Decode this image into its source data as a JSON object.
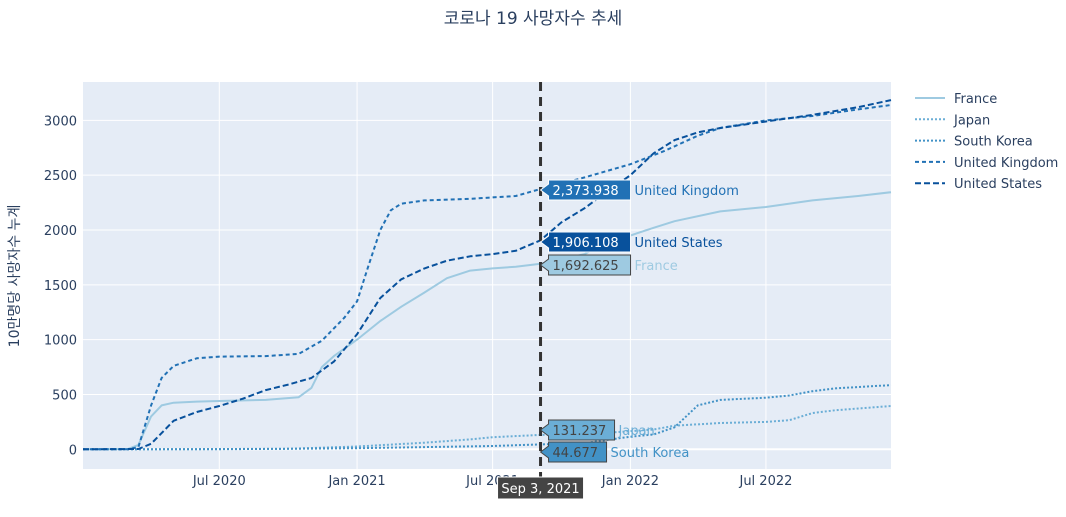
{
  "chart_data": {
    "type": "line",
    "title": "코로나 19 사망자수 추세",
    "xlabel": "",
    "ylabel": "10만명당 사망자수 누계",
    "x_range": [
      "2020-01-01",
      "2022-12-15"
    ],
    "ylim": [
      -180,
      3350
    ],
    "y_ticks": [
      0,
      500,
      1000,
      1500,
      2000,
      2500,
      3000
    ],
    "y_tick_labels": [
      "0",
      "500",
      "1000",
      "1500",
      "2000",
      "2500",
      "3000"
    ],
    "x_ticks": [
      "2020-07-01",
      "2021-01-01",
      "2021-07-01",
      "2022-01-01",
      "2022-07-01"
    ],
    "x_tick_labels": [
      "Jul 2020",
      "Jan 2021",
      "Jul 2021",
      "Jan 2022",
      "Jul 2022"
    ],
    "grid": true,
    "legend_position": "right",
    "plot_bg": "#e5ecf6",
    "series": [
      {
        "name": "France",
        "color": "#9ecae1",
        "dash": "solid",
        "points": [
          [
            "2020-01-01",
            0
          ],
          [
            "2020-03-01",
            2
          ],
          [
            "2020-03-15",
            40
          ],
          [
            "2020-04-01",
            300
          ],
          [
            "2020-04-15",
            400
          ],
          [
            "2020-05-01",
            425
          ],
          [
            "2020-06-01",
            435
          ],
          [
            "2020-07-01",
            440
          ],
          [
            "2020-09-01",
            450
          ],
          [
            "2020-10-15",
            475
          ],
          [
            "2020-11-01",
            560
          ],
          [
            "2020-11-15",
            750
          ],
          [
            "2020-12-01",
            850
          ],
          [
            "2021-01-01",
            1000
          ],
          [
            "2021-02-01",
            1170
          ],
          [
            "2021-03-01",
            1300
          ],
          [
            "2021-04-01",
            1430
          ],
          [
            "2021-05-01",
            1560
          ],
          [
            "2021-06-01",
            1630
          ],
          [
            "2021-07-01",
            1650
          ],
          [
            "2021-08-01",
            1665
          ],
          [
            "2021-09-03",
            1692.625
          ],
          [
            "2021-11-01",
            1780
          ],
          [
            "2021-12-01",
            1900
          ],
          [
            "2022-01-01",
            1950
          ],
          [
            "2022-02-01",
            2020
          ],
          [
            "2022-03-01",
            2080
          ],
          [
            "2022-05-01",
            2170
          ],
          [
            "2022-07-01",
            2210
          ],
          [
            "2022-09-01",
            2270
          ],
          [
            "2022-11-01",
            2310
          ],
          [
            "2022-12-15",
            2345
          ]
        ]
      },
      {
        "name": "Japan",
        "color": "#6baed6",
        "dash": "dot",
        "points": [
          [
            "2020-01-01",
            0
          ],
          [
            "2020-03-01",
            0
          ],
          [
            "2020-07-01",
            2
          ],
          [
            "2020-10-01",
            4
          ],
          [
            "2021-01-01",
            25
          ],
          [
            "2021-04-01",
            60
          ],
          [
            "2021-06-01",
            90
          ],
          [
            "2021-07-01",
            110
          ],
          [
            "2021-09-03",
            131.237
          ],
          [
            "2021-12-01",
            150
          ],
          [
            "2022-02-01",
            180
          ],
          [
            "2022-03-01",
            215
          ],
          [
            "2022-05-01",
            240
          ],
          [
            "2022-07-01",
            250
          ],
          [
            "2022-08-01",
            265
          ],
          [
            "2022-09-01",
            330
          ],
          [
            "2022-10-01",
            355
          ],
          [
            "2022-12-15",
            395
          ]
        ]
      },
      {
        "name": "South Korea",
        "color": "#4292c6",
        "dash": "dot",
        "points": [
          [
            "2020-01-01",
            0
          ],
          [
            "2020-03-01",
            0
          ],
          [
            "2020-07-01",
            1
          ],
          [
            "2020-10-01",
            4
          ],
          [
            "2021-01-01",
            10
          ],
          [
            "2021-04-01",
            20
          ],
          [
            "2021-07-01",
            30
          ],
          [
            "2021-09-03",
            44.677
          ],
          [
            "2021-11-01",
            55
          ],
          [
            "2021-12-01",
            85
          ],
          [
            "2022-01-01",
            115
          ],
          [
            "2022-02-01",
            135
          ],
          [
            "2022-03-01",
            200
          ],
          [
            "2022-04-01",
            400
          ],
          [
            "2022-05-01",
            450
          ],
          [
            "2022-07-01",
            470
          ],
          [
            "2022-08-01",
            490
          ],
          [
            "2022-09-01",
            530
          ],
          [
            "2022-10-01",
            555
          ],
          [
            "2022-12-15",
            585
          ]
        ]
      },
      {
        "name": "United Kingdom",
        "color": "#2171b5",
        "dash": "dash",
        "points": [
          [
            "2020-01-01",
            0
          ],
          [
            "2020-03-01",
            0
          ],
          [
            "2020-03-15",
            20
          ],
          [
            "2020-04-01",
            400
          ],
          [
            "2020-04-15",
            650
          ],
          [
            "2020-05-01",
            760
          ],
          [
            "2020-06-01",
            830
          ],
          [
            "2020-07-01",
            845
          ],
          [
            "2020-09-01",
            850
          ],
          [
            "2020-10-15",
            870
          ],
          [
            "2020-11-15",
            990
          ],
          [
            "2020-12-15",
            1200
          ],
          [
            "2021-01-01",
            1350
          ],
          [
            "2021-01-15",
            1650
          ],
          [
            "2021-02-01",
            2000
          ],
          [
            "2021-02-15",
            2180
          ],
          [
            "2021-03-01",
            2240
          ],
          [
            "2021-04-01",
            2270
          ],
          [
            "2021-06-01",
            2285
          ],
          [
            "2021-08-01",
            2310
          ],
          [
            "2021-09-03",
            2373.938
          ],
          [
            "2021-11-01",
            2480
          ],
          [
            "2022-01-01",
            2600
          ],
          [
            "2022-02-15",
            2720
          ],
          [
            "2022-04-01",
            2860
          ],
          [
            "2022-05-01",
            2930
          ],
          [
            "2022-07-01",
            3000
          ],
          [
            "2022-09-01",
            3040
          ],
          [
            "2022-11-01",
            3100
          ],
          [
            "2022-12-15",
            3140
          ]
        ]
      },
      {
        "name": "United States",
        "color": "#08519c",
        "dash": "longdash",
        "points": [
          [
            "2020-01-01",
            0
          ],
          [
            "2020-03-15",
            2
          ],
          [
            "2020-04-01",
            50
          ],
          [
            "2020-05-01",
            260
          ],
          [
            "2020-06-01",
            340
          ],
          [
            "2020-07-01",
            395
          ],
          [
            "2020-08-01",
            460
          ],
          [
            "2020-09-01",
            540
          ],
          [
            "2020-10-01",
            590
          ],
          [
            "2020-11-01",
            650
          ],
          [
            "2020-12-01",
            800
          ],
          [
            "2021-01-01",
            1050
          ],
          [
            "2021-02-01",
            1380
          ],
          [
            "2021-03-01",
            1550
          ],
          [
            "2021-04-01",
            1650
          ],
          [
            "2021-05-01",
            1720
          ],
          [
            "2021-06-01",
            1760
          ],
          [
            "2021-07-01",
            1780
          ],
          [
            "2021-08-01",
            1810
          ],
          [
            "2021-09-03",
            1906.108
          ],
          [
            "2021-10-01",
            2070
          ],
          [
            "2021-11-01",
            2200
          ],
          [
            "2021-12-01",
            2350
          ],
          [
            "2022-01-01",
            2500
          ],
          [
            "2022-02-01",
            2700
          ],
          [
            "2022-03-01",
            2820
          ],
          [
            "2022-04-01",
            2890
          ],
          [
            "2022-05-01",
            2930
          ],
          [
            "2022-07-01",
            2990
          ],
          [
            "2022-09-01",
            3050
          ],
          [
            "2022-11-01",
            3120
          ],
          [
            "2022-12-15",
            3185
          ]
        ]
      }
    ],
    "hover": {
      "x": "2021-09-03",
      "x_label": "Sep 3, 2021",
      "labels": [
        {
          "series": "United Kingdom",
          "value": 2373.938,
          "value_text": "2,373.938",
          "bg": "#2171b5",
          "fg": "#ffffff"
        },
        {
          "series": "United States",
          "value": 1906.108,
          "value_text": "1,906.108",
          "bg": "#08519c",
          "fg": "#ffffff"
        },
        {
          "series": "France",
          "value": 1692.625,
          "value_text": "1,692.625",
          "bg": "#9ecae1",
          "fg": "#444444"
        },
        {
          "series": "Japan",
          "value": 131.237,
          "value_text": "131.237",
          "bg": "#6baed6",
          "fg": "#444444"
        },
        {
          "series": "South Korea",
          "value": 44.677,
          "value_text": "44.677",
          "bg": "#4292c6",
          "fg": "#444444"
        }
      ]
    }
  }
}
